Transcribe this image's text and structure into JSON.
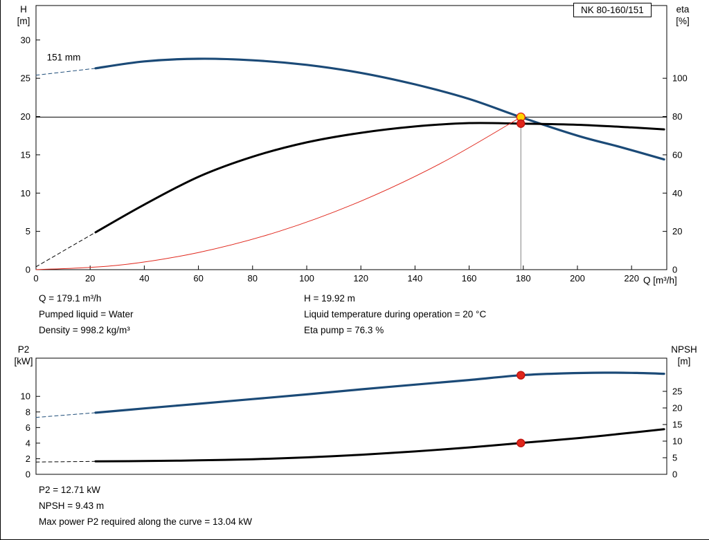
{
  "model_label": "NK 80-160/151",
  "axes": {
    "h_sym": "H",
    "h_unit": "[m]",
    "eta_sym": "eta",
    "eta_unit": "[%]",
    "q_label": "Q [m³/h]",
    "p2_sym": "P2",
    "p2_unit": "[kW]",
    "npsh_sym": "NPSH",
    "npsh_unit": "[m]"
  },
  "info_top": {
    "q": "Q = 179.1 m³/h",
    "pumped_liquid": "Pumped liquid = Water",
    "density": "Density = 998.2 kg/m³",
    "h": "H = 19.92 m",
    "temp": "Liquid temperature during operation = 20 °C",
    "eta": "Eta pump = 76.3 %"
  },
  "info_bottom": {
    "p2": "P2 = 12.71 kW",
    "npsh": "NPSH = 9.43 m",
    "max_power": "Max power P2 required along the curve = 13.04 kW"
  },
  "colors": {
    "curve_blue": "#1b4a77",
    "curve_black": "#000000",
    "curve_red": "#e0261b",
    "marker_yellow": "#ffd400",
    "marker_red": "#e0261b",
    "duty_line": "#000000",
    "vert_line": "#808080"
  },
  "chart_data": [
    {
      "type": "line",
      "x_axis": {
        "label": "Q [m³/h]",
        "min": 0,
        "max": 233,
        "ticks": [
          0,
          20,
          40,
          60,
          80,
          100,
          120,
          140,
          160,
          180,
          200,
          220
        ]
      },
      "y_left": {
        "label": "H [m]",
        "min": 0,
        "max": 34.5,
        "ticks": [
          0,
          5,
          10,
          15,
          20,
          25,
          30
        ]
      },
      "y_right": {
        "label": "eta [%]",
        "min": 0,
        "max": 138,
        "ticks": [
          0,
          20,
          40,
          60,
          80,
          100
        ]
      },
      "grid": false,
      "legend": "none",
      "series": [
        {
          "name": "head-curve-lead",
          "axis": "left",
          "color": "#1b4a77",
          "width": 1,
          "dash": "5 4",
          "smooth": false,
          "x": [
            0,
            22
          ],
          "y": [
            25.4,
            26.3
          ]
        },
        {
          "name": "head-curve-151mm",
          "axis": "left",
          "color": "#1b4a77",
          "width": 3.2,
          "smooth": true,
          "x": [
            22,
            40,
            60,
            80,
            100,
            120,
            140,
            160,
            179.1,
            200,
            216,
            232
          ],
          "y": [
            26.3,
            27.2,
            27.55,
            27.35,
            26.75,
            25.7,
            24.2,
            22.3,
            19.92,
            17.5,
            16.0,
            14.4
          ]
        },
        {
          "name": "eta-curve-lead",
          "axis": "right",
          "color": "#000000",
          "width": 1,
          "dash": "5 4",
          "smooth": false,
          "x": [
            0,
            22
          ],
          "y": [
            1.5,
            19.5
          ]
        },
        {
          "name": "eta-curve",
          "axis": "right",
          "color": "#000000",
          "width": 3,
          "smooth": true,
          "x": [
            22,
            40,
            60,
            80,
            100,
            120,
            140,
            160,
            179.1,
            200,
            220,
            232
          ],
          "y": [
            19.5,
            34,
            48.5,
            59,
            66.5,
            71.5,
            74.8,
            76.6,
            76.3,
            75.7,
            74.3,
            73.3
          ]
        },
        {
          "name": "system-curve",
          "axis": "left",
          "color": "#e0261b",
          "width": 1,
          "smooth": true,
          "x": [
            0,
            30,
            60,
            90,
            120,
            150,
            179.1
          ],
          "y": [
            0,
            0.56,
            2.24,
            5.03,
            8.95,
            13.98,
            19.92
          ]
        }
      ],
      "annotations": {
        "h_line": {
          "axis": "left",
          "value": 19.92,
          "color": "#000000",
          "width": 1
        },
        "v_line": {
          "x": 179.1,
          "axis": "left",
          "from": 0,
          "to": 19.92,
          "color": "#808080",
          "width": 1
        },
        "points": [
          {
            "name": "duty-point-head",
            "axis": "left",
            "x": 179.1,
            "y": 19.92,
            "r": 6,
            "fill": "#ffd400",
            "stroke": "#e0261b"
          },
          {
            "name": "duty-point-eta",
            "axis": "right",
            "x": 179.1,
            "y": 76.3,
            "r": 5.5,
            "fill": "#e0261b",
            "stroke": "#c01510"
          }
        ],
        "labels": [
          {
            "name": "impeller-diameter-label",
            "text": "151 mm",
            "axis": "left",
            "x": 4,
            "y": 27.3
          }
        ]
      },
      "duty_point": {
        "Q_m3h": 179.1,
        "H_m": 19.92,
        "eta_pct": 76.3
      }
    },
    {
      "type": "line",
      "x_axis": {
        "label": "Q [m³/h]",
        "min": 0,
        "max": 233,
        "ticks": []
      },
      "y_left": {
        "label": "P2 [kW]",
        "min": 0,
        "max": 14.9,
        "ticks": [
          0,
          2,
          4,
          6,
          8,
          10
        ]
      },
      "y_right": {
        "label": "NPSH [m]",
        "min": 0,
        "max": 35,
        "ticks": [
          0,
          5,
          10,
          15,
          20,
          25
        ]
      },
      "grid": false,
      "legend": "none",
      "series": [
        {
          "name": "p2-curve-lead",
          "axis": "left",
          "color": "#1b4a77",
          "width": 1,
          "dash": "5 4",
          "smooth": false,
          "x": [
            0,
            22
          ],
          "y": [
            7.3,
            7.9
          ]
        },
        {
          "name": "p2-curve",
          "axis": "left",
          "color": "#1b4a77",
          "width": 3.2,
          "smooth": true,
          "x": [
            22,
            40,
            60,
            80,
            100,
            120,
            140,
            160,
            179.1,
            195,
            210,
            222,
            232
          ],
          "y": [
            7.9,
            8.45,
            9.05,
            9.65,
            10.25,
            10.9,
            11.5,
            12.1,
            12.71,
            12.95,
            13.04,
            13.0,
            12.9
          ]
        },
        {
          "name": "npsh-curve-lead",
          "axis": "right",
          "color": "#000000",
          "width": 1,
          "dash": "5 4",
          "smooth": false,
          "x": [
            0,
            22
          ],
          "y": [
            3.7,
            3.9
          ]
        },
        {
          "name": "npsh-curve",
          "axis": "right",
          "color": "#000000",
          "width": 3,
          "smooth": true,
          "x": [
            22,
            40,
            60,
            80,
            100,
            120,
            140,
            160,
            179.1,
            200,
            216,
            232
          ],
          "y": [
            3.9,
            4.0,
            4.2,
            4.55,
            5.1,
            5.9,
            6.9,
            8.1,
            9.43,
            10.9,
            12.2,
            13.6
          ]
        }
      ],
      "annotations": {
        "points": [
          {
            "name": "duty-point-p2",
            "axis": "left",
            "x": 179.1,
            "y": 12.71,
            "r": 5.5,
            "fill": "#e0261b",
            "stroke": "#c01510"
          },
          {
            "name": "duty-point-npsh",
            "axis": "right",
            "x": 179.1,
            "y": 9.43,
            "r": 5.5,
            "fill": "#e0261b",
            "stroke": "#c01510"
          }
        ],
        "labels": []
      },
      "duty_point": {
        "Q_m3h": 179.1,
        "P2_kW": 12.71,
        "NPSH_m": 9.43,
        "P2_max_kW": 13.04
      }
    }
  ]
}
